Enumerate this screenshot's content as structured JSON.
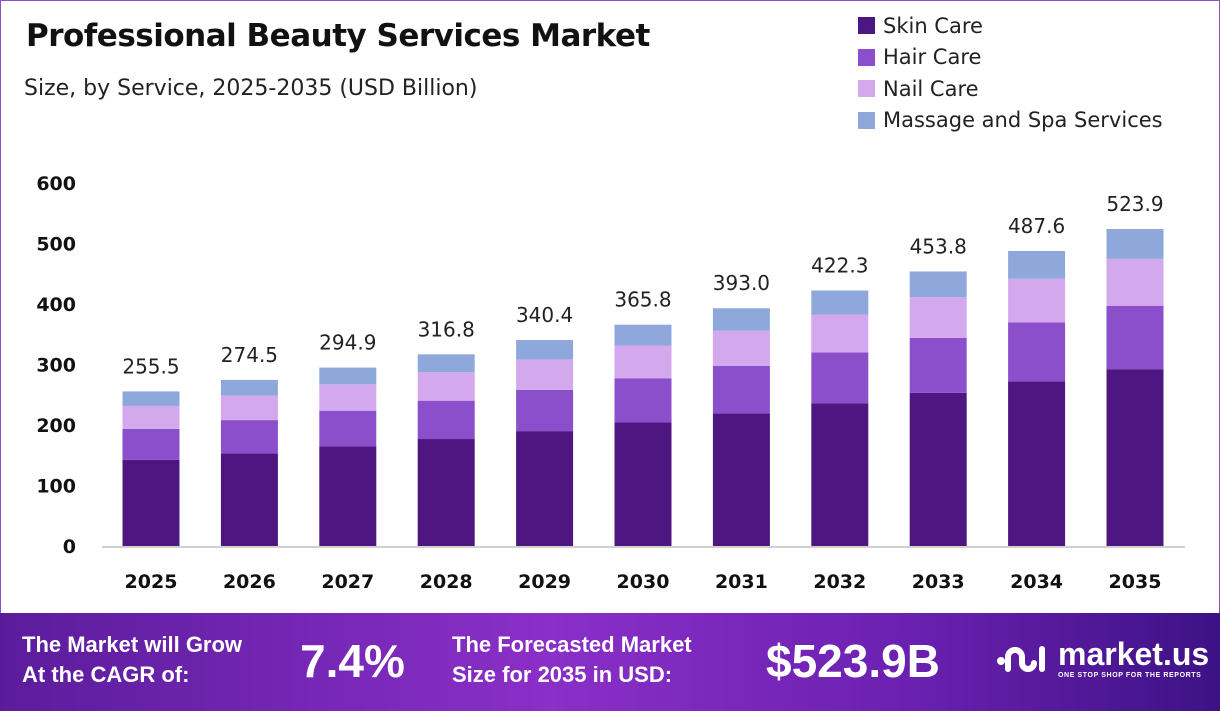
{
  "chart_data": {
    "type": "bar",
    "stacked": true,
    "title": "Professional Beauty Services Market",
    "subtitle": "Size, by Service, 2025-2035 (USD Billion)",
    "categories": [
      "2025",
      "2026",
      "2027",
      "2028",
      "2029",
      "2030",
      "2031",
      "2032",
      "2033",
      "2034",
      "2035"
    ],
    "series": [
      {
        "name": "Skin Care",
        "color": "#4e1680",
        "values": [
          142.6,
          153.2,
          164.6,
          176.8,
          189.9,
          204.1,
          219.3,
          235.6,
          253.2,
          272.1,
          292.3
        ]
      },
      {
        "name": "Hair Care",
        "color": "#8b4fcc",
        "values": [
          51.1,
          54.9,
          59.0,
          63.4,
          68.1,
          73.2,
          78.6,
          84.5,
          90.8,
          97.5,
          104.8
        ]
      },
      {
        "name": "Nail Care",
        "color": "#d4a8ec",
        "values": [
          37.8,
          40.6,
          43.6,
          46.9,
          50.4,
          54.1,
          58.2,
          62.5,
          67.2,
          72.2,
          77.5
        ]
      },
      {
        "name": "Massage and Spa Services",
        "color": "#8ea8dc",
        "values": [
          24.0,
          25.8,
          27.7,
          29.7,
          32.0,
          34.4,
          36.9,
          39.7,
          42.6,
          45.8,
          49.3
        ]
      }
    ],
    "totals": [
      "255.5",
      "274.5",
      "294.9",
      "316.8",
      "340.4",
      "365.8",
      "393.0",
      "422.3",
      "453.8",
      "487.6",
      "523.9"
    ],
    "yticks": [
      "0",
      "100",
      "200",
      "300",
      "400",
      "500",
      "600"
    ],
    "ylim": [
      0,
      600
    ],
    "grid": false,
    "legend_position": "top-right"
  },
  "footer": {
    "cagr_label_1": "The Market will Grow",
    "cagr_label_2": "At the CAGR of:",
    "cagr_value": "7.4%",
    "forecast_label_1": "The Forecasted Market",
    "forecast_label_2": "Size for 2035 in USD:",
    "forecast_value": "$523.9B",
    "logo_text": "market.us",
    "logo_tagline": "ONE STOP SHOP FOR THE REPORTS"
  }
}
